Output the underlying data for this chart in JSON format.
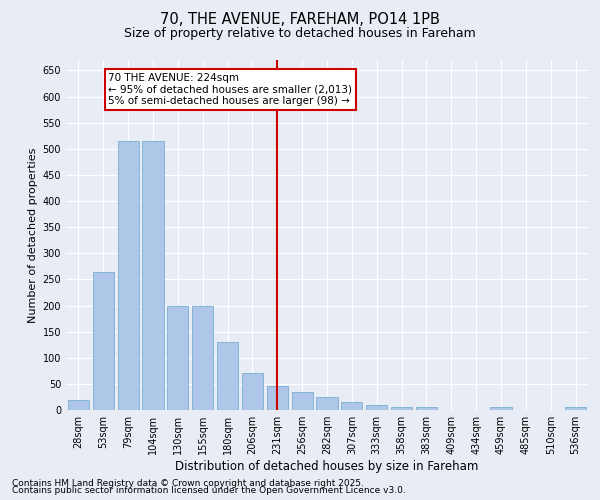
{
  "title": "70, THE AVENUE, FAREHAM, PO14 1PB",
  "subtitle": "Size of property relative to detached houses in Fareham",
  "xlabel": "Distribution of detached houses by size in Fareham",
  "ylabel": "Number of detached properties",
  "categories": [
    "28sqm",
    "53sqm",
    "79sqm",
    "104sqm",
    "130sqm",
    "155sqm",
    "180sqm",
    "206sqm",
    "231sqm",
    "256sqm",
    "282sqm",
    "307sqm",
    "333sqm",
    "358sqm",
    "383sqm",
    "409sqm",
    "434sqm",
    "459sqm",
    "485sqm",
    "510sqm",
    "536sqm"
  ],
  "values": [
    20,
    265,
    515,
    515,
    200,
    200,
    130,
    70,
    45,
    35,
    25,
    15,
    10,
    5,
    5,
    0,
    0,
    5,
    0,
    0,
    5
  ],
  "bar_color": "#aec6e8",
  "bar_edge_color": "#7aafd4",
  "vline_x_index": 8,
  "vline_color": "#cc0000",
  "annotation_text": "70 THE AVENUE: 224sqm\n← 95% of detached houses are smaller (2,013)\n5% of semi-detached houses are larger (98) →",
  "annotation_box_color": "#ffffff",
  "annotation_box_edge": "#cc0000",
  "ylim": [
    0,
    670
  ],
  "yticks": [
    0,
    50,
    100,
    150,
    200,
    250,
    300,
    350,
    400,
    450,
    500,
    550,
    600,
    650
  ],
  "background_color": "#e8edf5",
  "footer_line1": "Contains HM Land Registry data © Crown copyright and database right 2025.",
  "footer_line2": "Contains public sector information licensed under the Open Government Licence v3.0.",
  "title_fontsize": 10.5,
  "subtitle_fontsize": 9,
  "ylabel_fontsize": 8,
  "xlabel_fontsize": 8.5,
  "tick_fontsize": 7,
  "footer_fontsize": 6.5,
  "annotation_fontsize": 7.5
}
